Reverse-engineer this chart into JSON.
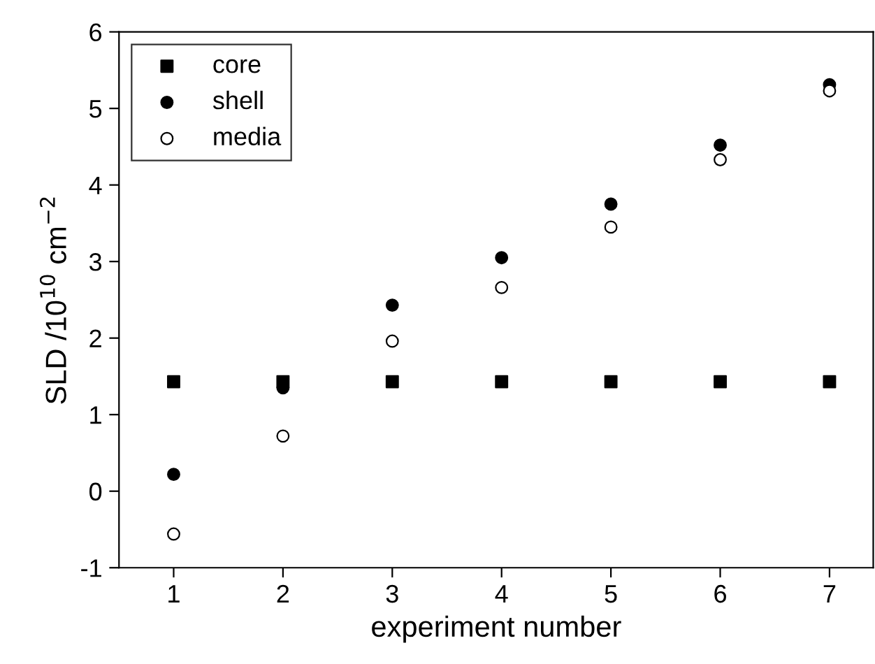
{
  "chart_data": {
    "type": "scatter",
    "xlabel": "experiment number",
    "ylabel": "SLD /10$^{10}$ cm$^{−2}$",
    "x": [
      1,
      2,
      3,
      4,
      5,
      6,
      7
    ],
    "series": [
      {
        "name": "core",
        "color": "#000000",
        "marker": "square",
        "values": [
          1.43,
          1.43,
          1.43,
          1.43,
          1.43,
          1.43,
          1.43
        ]
      },
      {
        "name": "shell",
        "color": "#000000",
        "marker": "circle",
        "values": [
          0.22,
          1.35,
          2.43,
          3.05,
          3.75,
          4.52,
          5.31
        ]
      },
      {
        "name": "media",
        "color": "#ffffff",
        "marker": "circle",
        "values": [
          -0.56,
          0.72,
          1.96,
          2.66,
          3.45,
          4.33,
          5.23
        ]
      }
    ],
    "xlim": [
      0.5,
      7.4
    ],
    "ylim": [
      -1,
      6
    ],
    "xticks": [
      1,
      2,
      3,
      4,
      5,
      6,
      7
    ],
    "yticks": [
      -1,
      0,
      1,
      2,
      3,
      4,
      5,
      6
    ],
    "grid": false,
    "legend": "top left"
  }
}
